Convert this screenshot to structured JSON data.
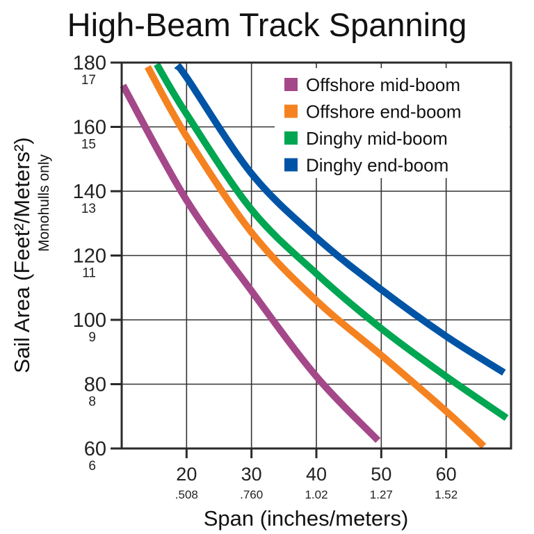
{
  "chart_data": {
    "type": "line",
    "title": "High-Beam Track Spanning",
    "xlabel": "Span (inches/meters)",
    "ylabel": "Sail Area (Feet²/Meters²)",
    "ylabel_sub": "Monohulls only",
    "xlim": [
      10,
      70
    ],
    "ylim": [
      60,
      180
    ],
    "grid": true,
    "legend_position": "top-right",
    "x_ticks": [
      {
        "value": 20,
        "label": "20",
        "metric": ".508"
      },
      {
        "value": 30,
        "label": "30",
        "metric": ".760"
      },
      {
        "value": 40,
        "label": "40",
        "metric": "1.02"
      },
      {
        "value": 50,
        "label": "50",
        "metric": "1.27"
      },
      {
        "value": 60,
        "label": "60",
        "metric": "1.52"
      }
    ],
    "y_ticks": [
      {
        "value": 180,
        "label": "180",
        "metric": "17"
      },
      {
        "value": 160,
        "label": "160",
        "metric": "15"
      },
      {
        "value": 140,
        "label": "140",
        "metric": "13"
      },
      {
        "value": 120,
        "label": "120",
        "metric": "11"
      },
      {
        "value": 100,
        "label": "100",
        "metric": "9"
      },
      {
        "value": 80,
        "label": "80",
        "metric": "8"
      },
      {
        "value": 60,
        "label": "60",
        "metric": "6"
      }
    ],
    "series": [
      {
        "name": "Offshore mid-boom",
        "color": "#a4488a",
        "x": [
          10.2,
          20,
          30,
          40,
          49.5
        ],
        "y": [
          172.9,
          137.2,
          109,
          82.4,
          62.5
        ]
      },
      {
        "name": "Offshore end-boom",
        "color": "#f58220",
        "x": [
          14,
          20,
          30,
          40,
          50,
          60,
          65.8
        ],
        "y": [
          178.7,
          157,
          127.2,
          106,
          89,
          71.6,
          60.7
        ]
      },
      {
        "name": "Dinghy mid-boom",
        "color": "#00a651",
        "x": [
          15.4,
          20,
          30,
          40,
          50,
          60,
          69.3
        ],
        "y": [
          179.5,
          164,
          134.3,
          114.4,
          97.3,
          82.4,
          69.5
        ]
      },
      {
        "name": "Dinghy end-boom",
        "color": "#0054a6",
        "x": [
          18.5,
          20,
          30,
          40,
          50,
          60,
          68.9
        ],
        "y": [
          179,
          175.4,
          145.5,
          125.6,
          109.4,
          94.9,
          83.6
        ]
      }
    ]
  }
}
